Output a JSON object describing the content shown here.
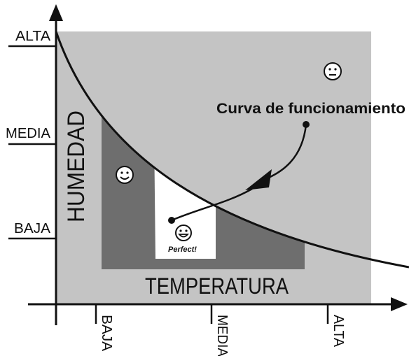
{
  "y_axis": {
    "title": "HUMEDAD",
    "labels": [
      "ALTA",
      "MEDIA",
      "BAJA"
    ]
  },
  "x_axis": {
    "title": "TEMPERATURA",
    "labels": [
      "BAJA",
      "MEDIA",
      "ALTA"
    ]
  },
  "annotation": "Curva de funcionamiento",
  "perfect_zone": "Perfect!"
}
